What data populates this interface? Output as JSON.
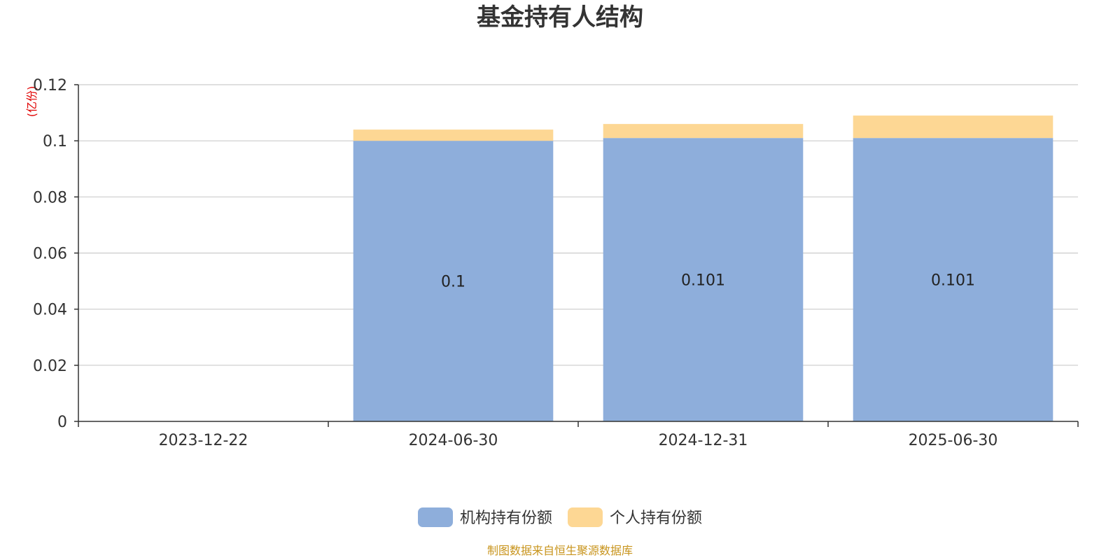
{
  "chart_data": {
    "type": "bar",
    "stacked": true,
    "title": "基金持有人结构",
    "unit_label": "(亿份)",
    "categories": [
      "2023-12-22",
      "2024-06-30",
      "2024-12-31",
      "2025-06-30"
    ],
    "series": [
      {
        "name": "机构持有份额",
        "color": "#8eaedb",
        "values": [
          null,
          0.1,
          0.101,
          0.101
        ],
        "labels": [
          "",
          "0.1",
          "0.101",
          "0.101"
        ]
      },
      {
        "name": "个人持有份额",
        "color": "#fdd794",
        "values": [
          null,
          0.004,
          0.005,
          0.008
        ]
      }
    ],
    "ylim": [
      0,
      0.12
    ],
    "yticks": [
      0,
      0.02,
      0.04,
      0.06,
      0.08,
      0.1,
      0.12
    ],
    "ytick_labels": [
      "0",
      "0.02",
      "0.04",
      "0.06",
      "0.08",
      "0.1",
      "0.12"
    ],
    "grid": true,
    "legend_position": "bottom-center"
  },
  "footer": {
    "source": "制图数据来自恒生聚源数据库"
  },
  "colors": {
    "axis": "#333333",
    "grid": "#cccccc",
    "source": "#c8941c",
    "unit": "#e00000"
  }
}
